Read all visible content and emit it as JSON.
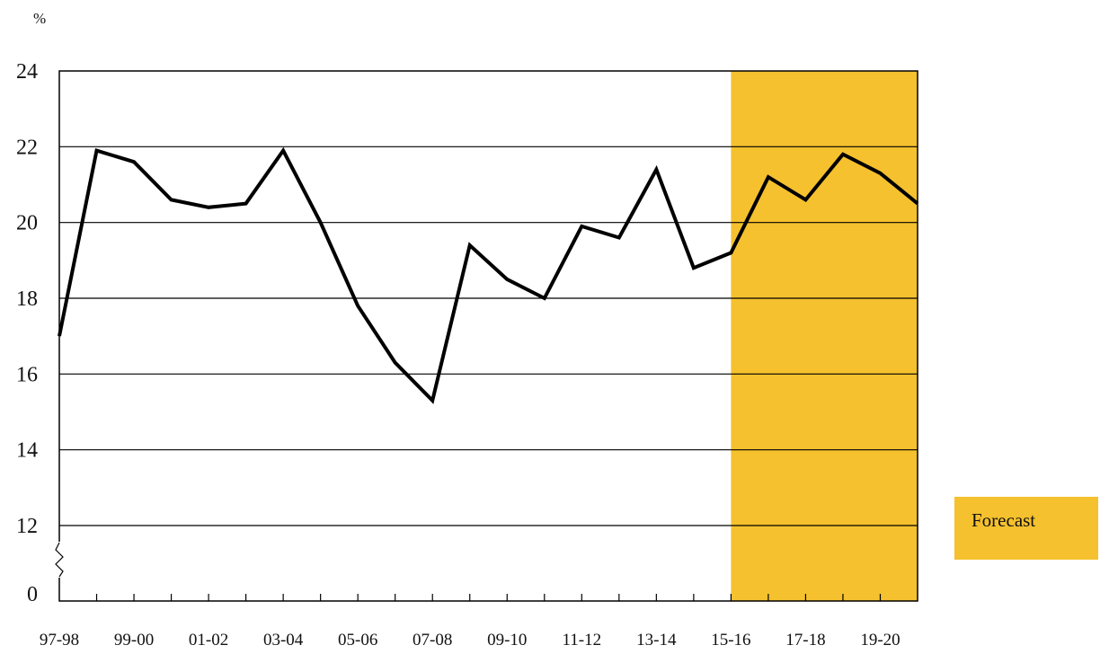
{
  "chart_data": {
    "type": "line",
    "title": "",
    "ylabel": "%",
    "xlabel": "",
    "ylim": [
      12,
      24
    ],
    "y_ticks": [
      "24",
      "22",
      "20",
      "18",
      "16",
      "14",
      "12"
    ],
    "y_break_label": "0",
    "y_axis_break": true,
    "grid": true,
    "x_tick_labels": [
      "97-98",
      "99-00",
      "01-02",
      "03-04",
      "05-06",
      "07-08",
      "09-10",
      "11-12",
      "13-14",
      "15-16",
      "17-18",
      "19-20"
    ],
    "categories": [
      "97-98",
      "98-99",
      "99-00",
      "00-01",
      "01-02",
      "02-03",
      "03-04",
      "04-05",
      "05-06",
      "06-07",
      "07-08",
      "08-09",
      "09-10",
      "10-11",
      "11-12",
      "12-13",
      "13-14",
      "14-15",
      "15-16",
      "16-17",
      "17-18",
      "18-19",
      "19-20",
      "20-21"
    ],
    "series": [
      {
        "values": [
          17.0,
          21.9,
          21.6,
          20.6,
          20.4,
          20.5,
          21.9,
          20.0,
          17.8,
          16.3,
          15.3,
          19.4,
          18.5,
          18.0,
          19.9,
          19.6,
          21.4,
          18.8,
          19.2,
          21.2,
          20.6,
          21.8,
          21.3,
          20.5
        ],
        "color": "#000000"
      }
    ],
    "forecast_region": {
      "from": "15-16",
      "to": "20-21",
      "color": "#F5C12E"
    },
    "legend": {
      "label": "Forecast",
      "placement": "right",
      "color": "#F5C12E"
    }
  }
}
